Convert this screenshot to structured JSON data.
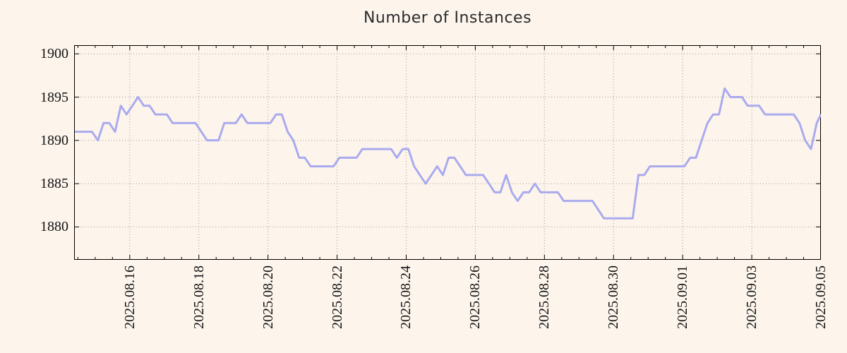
{
  "chart_data": {
    "type": "line",
    "title": "Number of Instances",
    "legend": "none",
    "grid": true,
    "colors": {
      "background": "#fdf5ec",
      "line": "#aaaaee",
      "grid": "#9a9a9a",
      "axis": "#000000",
      "title_text": "#2b2b2b",
      "tick_text": "#121212"
    },
    "x_axis": {
      "unit": "days relative to 2025.08.16 00:00",
      "range": [
        -1.61,
        20
      ],
      "major_tick_step_days": 2,
      "minor_tick_step_days": 0.5,
      "major_ticks": [
        {
          "d": 0,
          "label": "2025.08.16"
        },
        {
          "d": 2,
          "label": "2025.08.18"
        },
        {
          "d": 4,
          "label": "2025.08.20"
        },
        {
          "d": 6,
          "label": "2025.08.22"
        },
        {
          "d": 8,
          "label": "2025.08.24"
        },
        {
          "d": 10,
          "label": "2025.08.26"
        },
        {
          "d": 12,
          "label": "2025.08.28"
        },
        {
          "d": 14,
          "label": "2025.08.30"
        },
        {
          "d": 16,
          "label": "2025.09.01"
        },
        {
          "d": 18,
          "label": "2025.09.03"
        },
        {
          "d": 20,
          "label": "2025.09.05"
        }
      ]
    },
    "y_axis": {
      "range": [
        1876.2,
        1901.0
      ],
      "ticks": [
        {
          "v": 1880,
          "label": "1880"
        },
        {
          "v": 1885,
          "label": "1885"
        },
        {
          "v": 1890,
          "label": "1890"
        },
        {
          "v": 1895,
          "label": "1895"
        },
        {
          "v": 1900,
          "label": "1900"
        }
      ]
    },
    "series": [
      {
        "name": "instances",
        "x_start_days": -1.59,
        "x_step_days": 0.16643,
        "values": [
          1891,
          1891,
          1891,
          1891,
          1890,
          1892,
          1892,
          1891,
          1894,
          1893,
          1894,
          1895,
          1894,
          1894,
          1893,
          1893,
          1893,
          1892,
          1892,
          1892,
          1892,
          1892,
          1891,
          1890,
          1890,
          1890,
          1892,
          1892,
          1892,
          1893,
          1892,
          1892,
          1892,
          1892,
          1892,
          1893,
          1893,
          1891,
          1890,
          1888,
          1888,
          1887,
          1887,
          1887,
          1887,
          1887,
          1888,
          1888,
          1888,
          1888,
          1889,
          1889,
          1889,
          1889,
          1889,
          1889,
          1888,
          1889,
          1889,
          1887,
          1886,
          1885,
          1886,
          1887,
          1886,
          1888,
          1888,
          1887,
          1886,
          1886,
          1886,
          1886,
          1885,
          1884,
          1884,
          1886,
          1884,
          1883,
          1884,
          1884,
          1885,
          1884,
          1884,
          1884,
          1884,
          1883,
          1883,
          1883,
          1883,
          1883,
          1883,
          1882,
          1881,
          1881,
          1881,
          1881,
          1881,
          1881,
          1886,
          1886,
          1887,
          1887,
          1887,
          1887,
          1887,
          1887,
          1887,
          1888,
          1888,
          1890,
          1892,
          1893,
          1893,
          1896,
          1895,
          1895,
          1895,
          1894,
          1894,
          1894,
          1893,
          1893,
          1893,
          1893,
          1893,
          1893,
          1892,
          1890,
          1889,
          1892,
          1893
        ]
      }
    ]
  }
}
